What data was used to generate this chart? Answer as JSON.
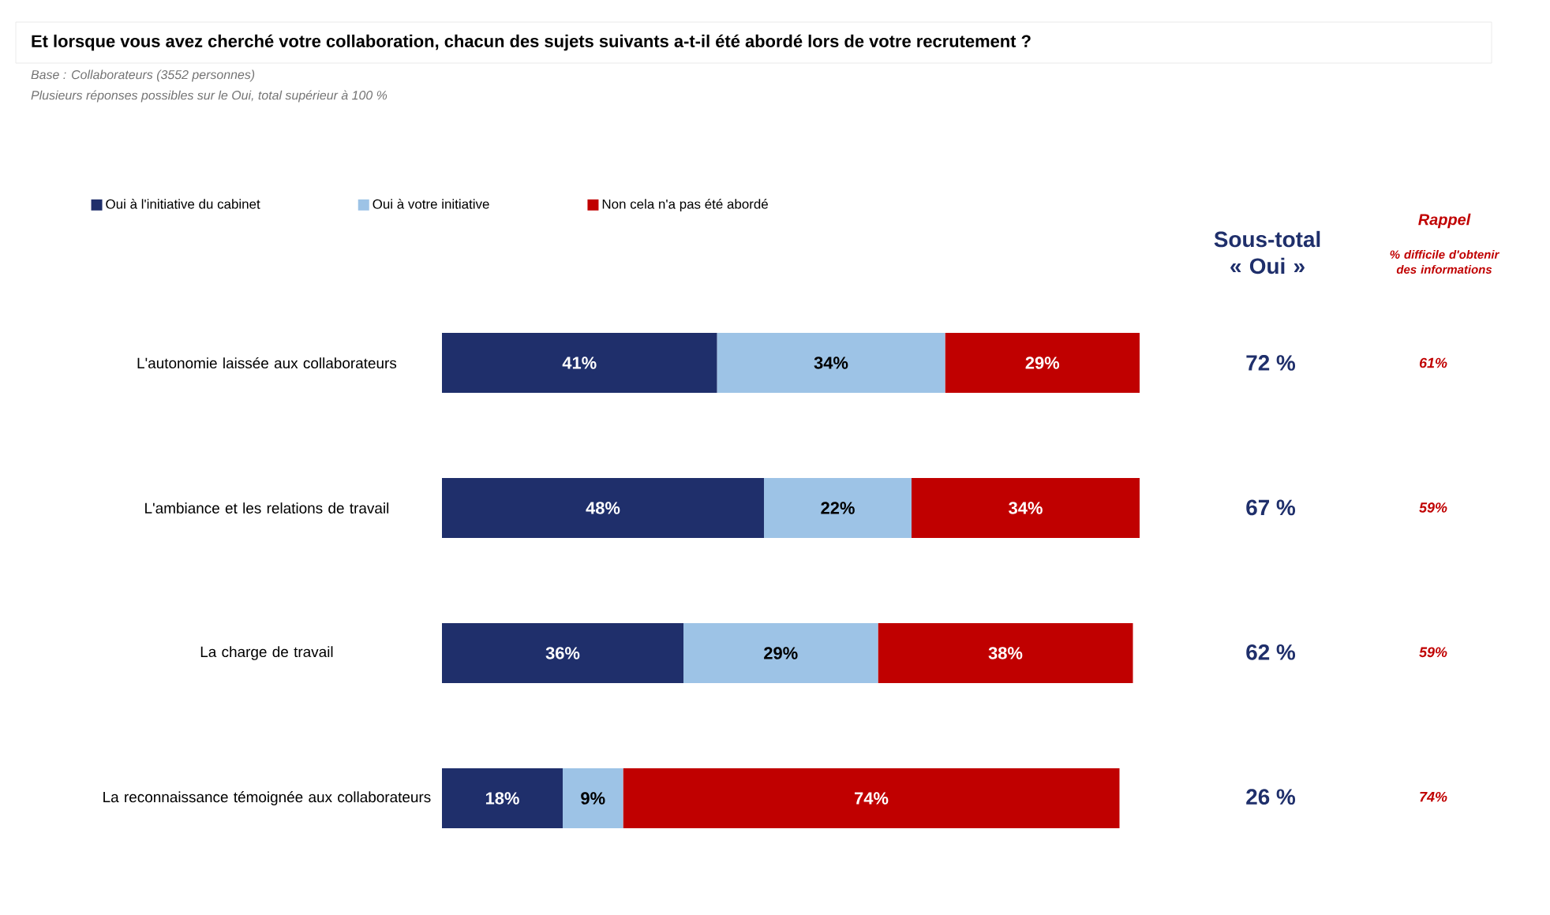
{
  "chart_data": {
    "type": "bar",
    "orientation": "horizontal",
    "stacked": true,
    "title": "Et lorsque vous avez cherché votre collaboration, chacun des sujets suivants a-t-il été abordé lors de votre recrutement ?",
    "categories": [
      "L'autonomie laissée aux collaborateurs",
      "L'ambiance et les relations de travail",
      "La charge de travail",
      "La reconnaissance témoignée aux collaborateurs"
    ],
    "series": [
      {
        "name": "Oui à l'initiative du cabinet",
        "color": "#1f2f6b",
        "values": [
          41,
          48,
          36,
          18
        ],
        "value_labels": [
          "41%",
          "48%",
          "36%",
          "18%"
        ]
      },
      {
        "name": "Oui à votre initiative",
        "color": "#9dc3e6",
        "values": [
          34,
          22,
          29,
          9
        ],
        "value_labels": [
          "34%",
          "22%",
          "29%",
          "9%"
        ]
      },
      {
        "name": "Non cela n'a pas été abordé",
        "color": "#c00000",
        "values": [
          29,
          34,
          38,
          74
        ],
        "value_labels": [
          "29%",
          "34%",
          "38%",
          "74%"
        ]
      }
    ],
    "legend": "top",
    "annotations": [
      "Base : Collaborateurs (3552 personnes)",
      "Plusieurs réponses possibles sur le Oui, total supérieur à 100 %",
      "Sous-total « Oui »",
      "Rappel",
      "% difficile d'obtenir des informations",
      "72 %",
      "67 %",
      "62 %",
      "26 %",
      "61%",
      "59%",
      "59%",
      "74%"
    ]
  }
}
